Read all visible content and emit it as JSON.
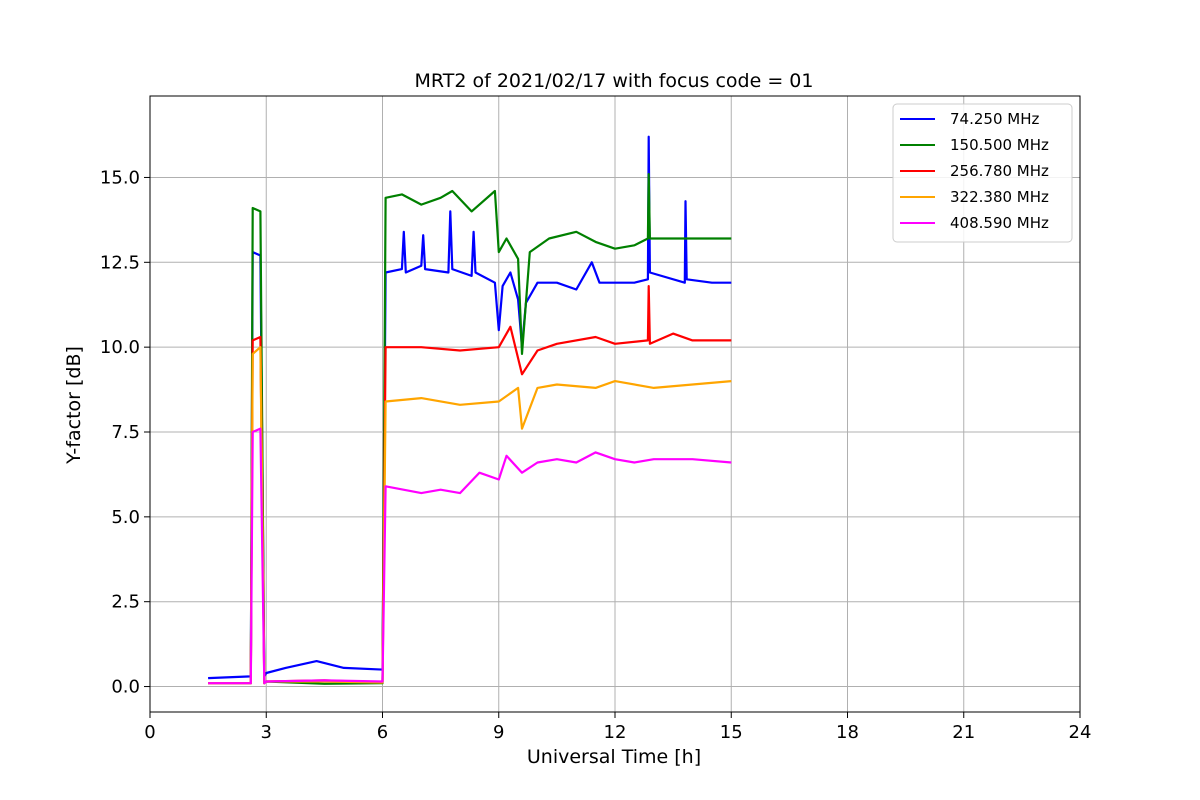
{
  "chart_data": {
    "type": "line",
    "title": "MRT2 of 2021/02/17 with focus code = 01",
    "xlabel": "Universal Time [h]",
    "ylabel": "Y-factor [dB]",
    "xlim": [
      0,
      24
    ],
    "ylim": [
      -0.75,
      17.4
    ],
    "xticks": [
      0,
      3,
      6,
      9,
      12,
      15,
      18,
      21,
      24
    ],
    "xtick_labels": [
      "0",
      "3",
      "6",
      "9",
      "12",
      "15",
      "18",
      "21",
      "24"
    ],
    "yticks": [
      0.0,
      2.5,
      5.0,
      7.5,
      10.0,
      12.5,
      15.0
    ],
    "ytick_labels": [
      "0.0",
      "2.5",
      "5.0",
      "7.5",
      "10.0",
      "12.5",
      "15.0"
    ],
    "grid": true,
    "legend_position": "top-right",
    "series": [
      {
        "name": " 74.250 MHz",
        "color": "#0000ff",
        "points": [
          [
            1.5,
            0.25
          ],
          [
            2.6,
            0.3
          ],
          [
            2.65,
            12.8
          ],
          [
            2.85,
            12.7
          ],
          [
            2.95,
            0.3
          ],
          [
            3.0,
            0.4
          ],
          [
            3.5,
            0.55
          ],
          [
            4.3,
            0.75
          ],
          [
            5.0,
            0.55
          ],
          [
            6.0,
            0.5
          ],
          [
            6.08,
            12.2
          ],
          [
            6.5,
            12.3
          ],
          [
            6.55,
            13.4
          ],
          [
            6.6,
            12.2
          ],
          [
            7.0,
            12.4
          ],
          [
            7.05,
            13.3
          ],
          [
            7.1,
            12.3
          ],
          [
            7.7,
            12.2
          ],
          [
            7.75,
            14.0
          ],
          [
            7.8,
            12.3
          ],
          [
            8.3,
            12.1
          ],
          [
            8.35,
            13.4
          ],
          [
            8.4,
            12.2
          ],
          [
            8.9,
            11.9
          ],
          [
            9.0,
            10.5
          ],
          [
            9.1,
            11.8
          ],
          [
            9.3,
            12.2
          ],
          [
            9.5,
            11.4
          ],
          [
            9.6,
            10.0
          ],
          [
            9.7,
            11.3
          ],
          [
            10.0,
            11.9
          ],
          [
            10.5,
            11.9
          ],
          [
            11.0,
            11.7
          ],
          [
            11.4,
            12.5
          ],
          [
            11.6,
            11.9
          ],
          [
            12.5,
            11.9
          ],
          [
            12.85,
            12.0
          ],
          [
            12.87,
            16.2
          ],
          [
            12.9,
            12.2
          ],
          [
            13.8,
            11.9
          ],
          [
            13.82,
            14.3
          ],
          [
            13.85,
            12.0
          ],
          [
            14.5,
            11.9
          ],
          [
            15.0,
            11.9
          ]
        ]
      },
      {
        "name": "150.500 MHz",
        "color": "#008000",
        "points": [
          [
            1.5,
            0.1
          ],
          [
            2.6,
            0.1
          ],
          [
            2.65,
            14.1
          ],
          [
            2.85,
            14.0
          ],
          [
            2.95,
            0.1
          ],
          [
            3.0,
            0.15
          ],
          [
            4.5,
            0.08
          ],
          [
            6.0,
            0.1
          ],
          [
            6.08,
            14.4
          ],
          [
            6.5,
            14.5
          ],
          [
            7.0,
            14.2
          ],
          [
            7.5,
            14.4
          ],
          [
            7.8,
            14.6
          ],
          [
            8.3,
            14.0
          ],
          [
            8.9,
            14.6
          ],
          [
            9.0,
            12.8
          ],
          [
            9.2,
            13.2
          ],
          [
            9.5,
            12.6
          ],
          [
            9.6,
            9.8
          ],
          [
            9.8,
            12.8
          ],
          [
            10.3,
            13.2
          ],
          [
            11.0,
            13.4
          ],
          [
            11.5,
            13.1
          ],
          [
            12.0,
            12.9
          ],
          [
            12.5,
            13.0
          ],
          [
            12.85,
            13.2
          ],
          [
            12.87,
            15.1
          ],
          [
            12.9,
            13.2
          ],
          [
            13.5,
            13.2
          ],
          [
            14.0,
            13.2
          ],
          [
            15.0,
            13.2
          ]
        ]
      },
      {
        "name": "256.780 MHz",
        "color": "#ff0000",
        "points": [
          [
            1.5,
            0.1
          ],
          [
            2.6,
            0.1
          ],
          [
            2.65,
            10.2
          ],
          [
            2.85,
            10.3
          ],
          [
            2.95,
            0.1
          ],
          [
            3.0,
            0.15
          ],
          [
            4.5,
            0.18
          ],
          [
            6.0,
            0.12
          ],
          [
            6.08,
            10.0
          ],
          [
            7.0,
            10.0
          ],
          [
            8.0,
            9.9
          ],
          [
            9.0,
            10.0
          ],
          [
            9.3,
            10.6
          ],
          [
            9.6,
            9.2
          ],
          [
            10.0,
            9.9
          ],
          [
            10.5,
            10.1
          ],
          [
            11.5,
            10.3
          ],
          [
            12.0,
            10.1
          ],
          [
            12.85,
            10.2
          ],
          [
            12.87,
            11.8
          ],
          [
            12.9,
            10.1
          ],
          [
            13.5,
            10.4
          ],
          [
            14.0,
            10.2
          ],
          [
            15.0,
            10.2
          ]
        ]
      },
      {
        "name": "322.380 MHz",
        "color": "#ffa500",
        "points": [
          [
            1.5,
            0.1
          ],
          [
            2.6,
            0.1
          ],
          [
            2.65,
            9.8
          ],
          [
            2.85,
            10.0
          ],
          [
            2.95,
            0.1
          ],
          [
            3.0,
            0.15
          ],
          [
            4.5,
            0.15
          ],
          [
            6.0,
            0.12
          ],
          [
            6.08,
            8.4
          ],
          [
            7.0,
            8.5
          ],
          [
            8.0,
            8.3
          ],
          [
            9.0,
            8.4
          ],
          [
            9.5,
            8.8
          ],
          [
            9.6,
            7.6
          ],
          [
            10.0,
            8.8
          ],
          [
            10.5,
            8.9
          ],
          [
            11.5,
            8.8
          ],
          [
            12.0,
            9.0
          ],
          [
            13.0,
            8.8
          ],
          [
            14.0,
            8.9
          ],
          [
            15.0,
            9.0
          ]
        ]
      },
      {
        "name": "408.590 MHz",
        "color": "#ff00ff",
        "points": [
          [
            1.5,
            0.1
          ],
          [
            2.6,
            0.1
          ],
          [
            2.65,
            7.5
          ],
          [
            2.85,
            7.6
          ],
          [
            2.95,
            0.1
          ],
          [
            3.0,
            0.15
          ],
          [
            4.5,
            0.18
          ],
          [
            6.0,
            0.15
          ],
          [
            6.08,
            5.9
          ],
          [
            7.0,
            5.7
          ],
          [
            7.5,
            5.8
          ],
          [
            8.0,
            5.7
          ],
          [
            8.5,
            6.3
          ],
          [
            9.0,
            6.1
          ],
          [
            9.2,
            6.8
          ],
          [
            9.6,
            6.3
          ],
          [
            10.0,
            6.6
          ],
          [
            10.5,
            6.7
          ],
          [
            11.0,
            6.6
          ],
          [
            11.5,
            6.9
          ],
          [
            12.0,
            6.7
          ],
          [
            12.5,
            6.6
          ],
          [
            13.0,
            6.7
          ],
          [
            14.0,
            6.7
          ],
          [
            15.0,
            6.6
          ]
        ]
      }
    ]
  }
}
